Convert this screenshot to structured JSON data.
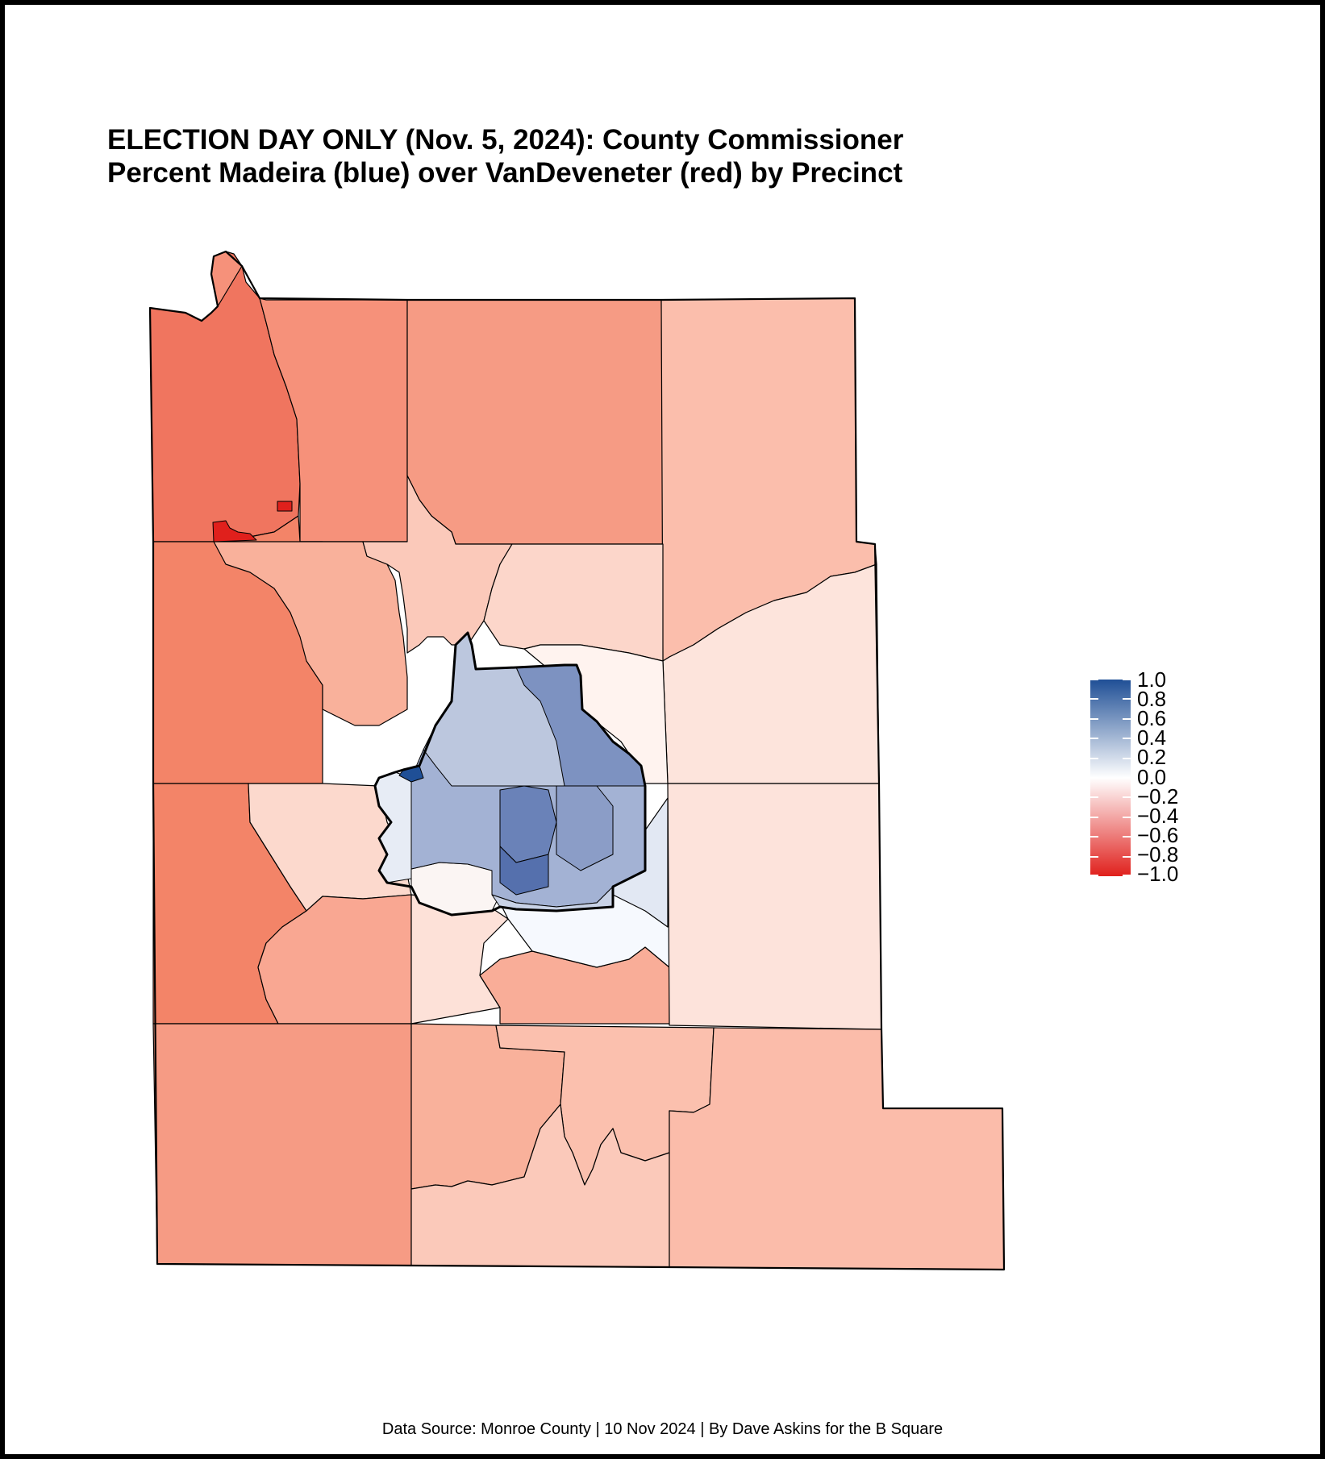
{
  "title": {
    "line1": "ELECTION DAY ONLY (Nov. 5, 2024): County Commissioner",
    "line2": "Percent Madeira (blue) over VanDeveneter (red) by Precinct"
  },
  "legend": {
    "labels": [
      "1.0",
      "0.8",
      "0.6",
      "0.4",
      "0.2",
      "0.0",
      "−0.2",
      "−0.4",
      "−0.6",
      "−0.8",
      "−1.0"
    ],
    "max_color": "#1f4f96",
    "mid_color": "#ffffff",
    "min_color": "#e0201c"
  },
  "colors": {
    "outline": "#000000",
    "frame": "#000000",
    "background": "#ffffff"
  },
  "footer": "Data Source: Monroe County | 10 Nov 2024 | By Dave Askins for the B Square"
}
